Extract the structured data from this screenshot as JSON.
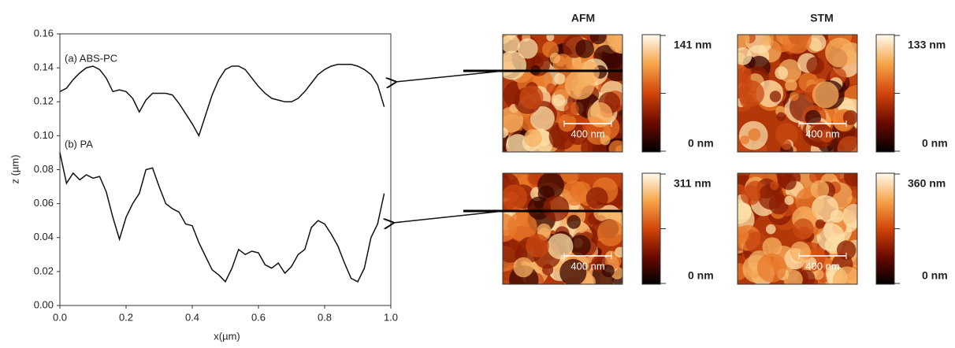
{
  "chart_data": {
    "type": "line",
    "xlabel": "x(µm)",
    "ylabel": "z (µm)",
    "x": [
      0,
      0.02,
      0.04,
      0.06,
      0.08,
      0.1,
      0.12,
      0.14,
      0.16,
      0.18,
      0.2,
      0.22,
      0.24,
      0.26,
      0.28,
      0.3,
      0.32,
      0.34,
      0.36,
      0.38,
      0.4,
      0.42,
      0.44,
      0.46,
      0.48,
      0.5,
      0.52,
      0.54,
      0.56,
      0.58,
      0.6,
      0.62,
      0.64,
      0.66,
      0.68,
      0.7,
      0.72,
      0.74,
      0.76,
      0.78,
      0.8,
      0.82,
      0.84,
      0.86,
      0.88,
      0.9,
      0.92,
      0.94,
      0.96,
      0.98
    ],
    "series": [
      {
        "name": "(a) ABS-PC",
        "color": "#111111",
        "values": [
          0.126,
          0.128,
          0.133,
          0.137,
          0.14,
          0.141,
          0.139,
          0.134,
          0.126,
          0.127,
          0.126,
          0.122,
          0.114,
          0.121,
          0.125,
          0.125,
          0.125,
          0.124,
          0.119,
          0.113,
          0.107,
          0.1,
          0.112,
          0.124,
          0.133,
          0.139,
          0.141,
          0.141,
          0.139,
          0.134,
          0.129,
          0.125,
          0.122,
          0.121,
          0.12,
          0.12,
          0.122,
          0.126,
          0.131,
          0.136,
          0.139,
          0.141,
          0.142,
          0.142,
          0.142,
          0.141,
          0.139,
          0.136,
          0.13,
          0.117
        ]
      },
      {
        "name": "(b) PA",
        "color": "#111111",
        "values": [
          0.09,
          0.072,
          0.078,
          0.074,
          0.077,
          0.075,
          0.076,
          0.067,
          0.052,
          0.039,
          0.052,
          0.06,
          0.066,
          0.08,
          0.081,
          0.07,
          0.06,
          0.057,
          0.055,
          0.048,
          0.047,
          0.037,
          0.029,
          0.021,
          0.018,
          0.014,
          0.022,
          0.033,
          0.03,
          0.032,
          0.031,
          0.024,
          0.022,
          0.025,
          0.019,
          0.023,
          0.03,
          0.033,
          0.046,
          0.05,
          0.048,
          0.042,
          0.035,
          0.025,
          0.016,
          0.014,
          0.022,
          0.04,
          0.048,
          0.066
        ]
      }
    ],
    "xlim": [
      0,
      1
    ],
    "ylim": [
      0,
      0.16
    ],
    "xticks": [
      {
        "value": 0,
        "label": "0.0"
      },
      {
        "value": 0.2,
        "label": "0.2"
      },
      {
        "value": 0.4,
        "label": "0.4"
      },
      {
        "value": 0.6,
        "label": "0.6"
      },
      {
        "value": 0.8,
        "label": "0.8"
      },
      {
        "value": 1,
        "label": "1.0"
      }
    ],
    "yticks": [
      {
        "value": 0,
        "label": "0.00"
      },
      {
        "value": 0.02,
        "label": "0.02"
      },
      {
        "value": 0.04,
        "label": "0.04"
      },
      {
        "value": 0.06,
        "label": "0.06"
      },
      {
        "value": 0.08,
        "label": "0.08"
      },
      {
        "value": 0.1,
        "label": "0.10"
      },
      {
        "value": 0.12,
        "label": "0.12"
      },
      {
        "value": 0.14,
        "label": "0.14"
      },
      {
        "value": 0.16,
        "label": "0.16"
      }
    ]
  },
  "panels": {
    "headers": [
      "AFM",
      "STM"
    ],
    "images": [
      {
        "max_label": "141 nm",
        "min_label": "0 nm",
        "scale_bar": "400 nm"
      },
      {
        "max_label": "133 nm",
        "min_label": "0 nm",
        "scale_bar": "400 nm"
      },
      {
        "max_label": "311 nm",
        "min_label": "0 nm",
        "scale_bar": "400 nm"
      },
      {
        "max_label": "360 nm",
        "min_label": "0 nm",
        "scale_bar": "400 nm"
      }
    ]
  }
}
